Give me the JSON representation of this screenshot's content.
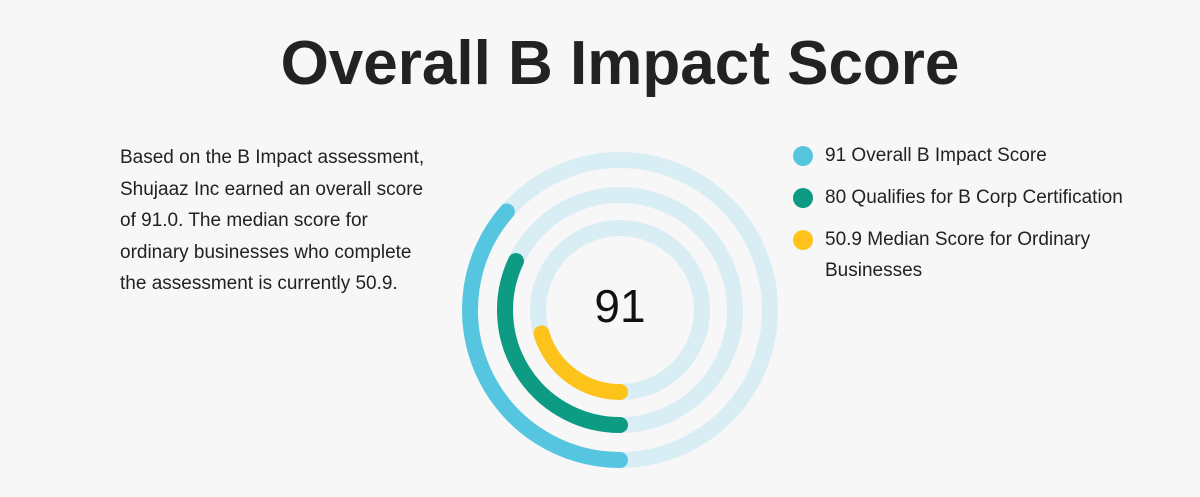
{
  "chart_data": {
    "type": "radial_bar",
    "title": "Overall B Impact Score",
    "description": "Based on the B Impact assessment, Shujaaz Inc earned an overall score of 91.0. The median score for ordinary businesses who complete the assessment is currently 50.9.",
    "rlim": [
      0,
      250
    ],
    "track_color": "#d9edf4",
    "series": [
      {
        "name": "Overall B Impact Score",
        "color": "#56c5e0",
        "value": 91
      },
      {
        "name": "Qualifies for B Corp Certification",
        "color": "#0e9b83",
        "value": 80
      },
      {
        "name": "Median Score for Ordinary Businesses",
        "color": "#fec31b",
        "value": 50.9
      }
    ]
  }
}
